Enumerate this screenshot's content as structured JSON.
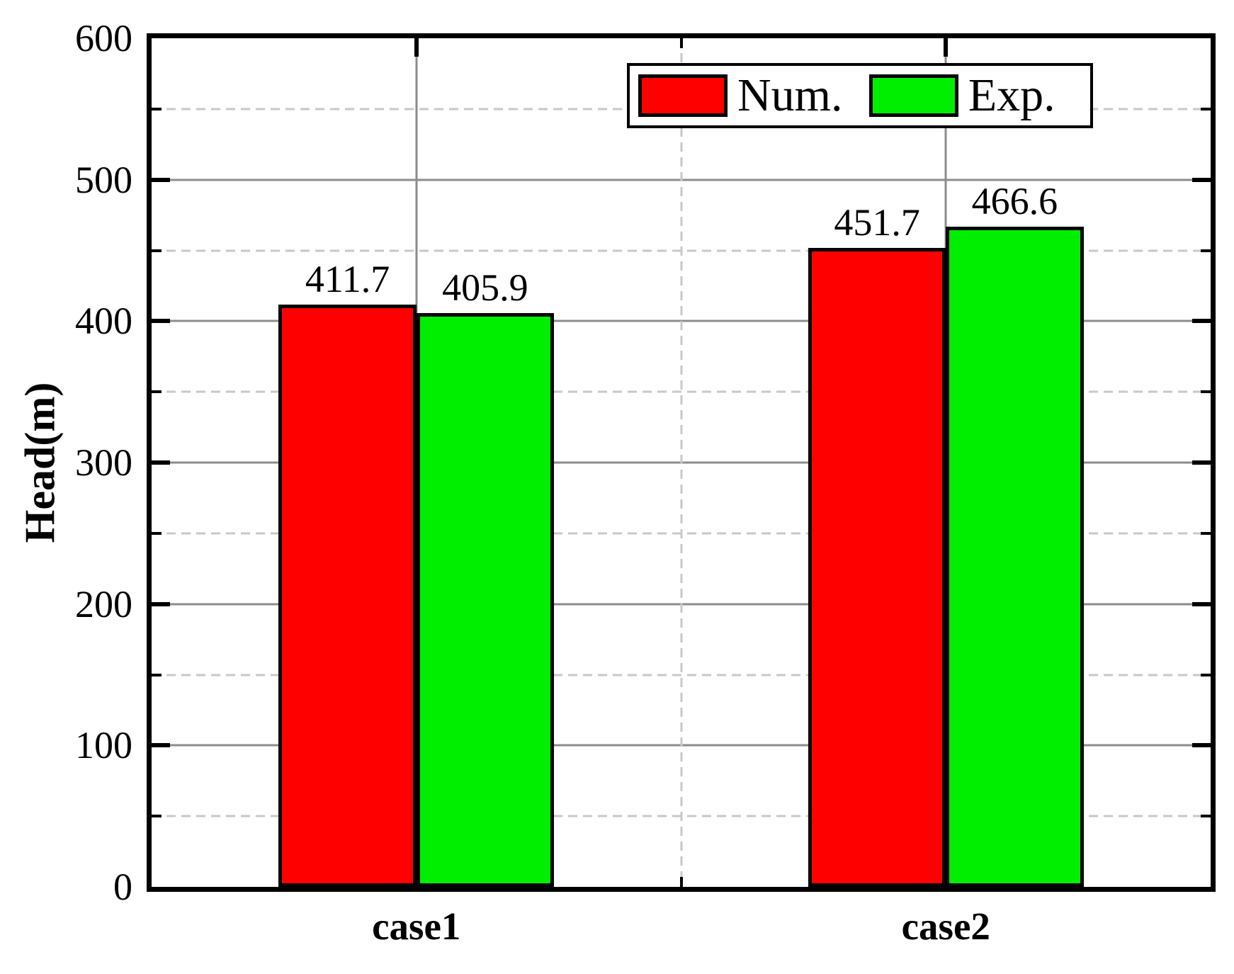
{
  "chart_data": {
    "type": "bar",
    "title": "",
    "xlabel": "",
    "ylabel": "Head(m)",
    "categories": [
      "case1",
      "case2"
    ],
    "series": [
      {
        "name": "Num.",
        "color": "#ff0000",
        "values": [
          411.7,
          451.7
        ]
      },
      {
        "name": "Exp.",
        "color": "#00ee00",
        "values": [
          405.9,
          466.6
        ]
      }
    ],
    "ylim": [
      0,
      600
    ],
    "yticks_major": [
      0,
      100,
      200,
      300,
      400,
      500,
      600
    ],
    "yticks_minor": [
      50,
      150,
      250,
      350,
      450,
      550
    ],
    "value_label_decimals": 1,
    "grid": {
      "major_style": "solid",
      "major_color": "#8c8c8c",
      "minor_style": "dashed",
      "minor_color": "#c8c8c8"
    },
    "legend_position": "top-center",
    "axis_color": "#000000",
    "plot_background": "#ffffff"
  }
}
